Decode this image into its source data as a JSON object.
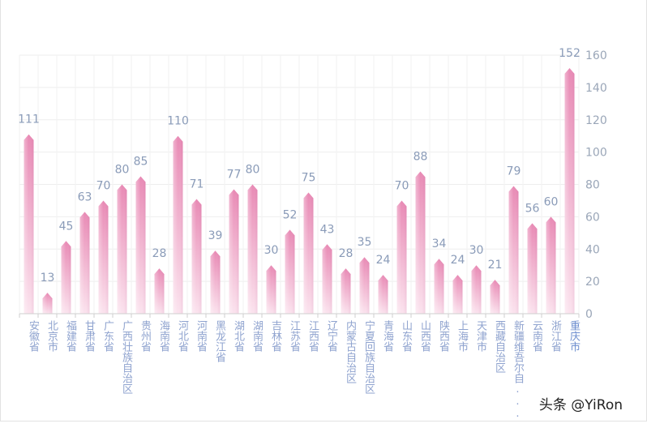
{
  "chart_data": {
    "type": "bar",
    "categories": [
      "安徽省",
      "北京市",
      "福建省",
      "甘肃省",
      "广东省",
      "广西壮族自治区",
      "贵州省",
      "海南省",
      "河北省",
      "河南省",
      "黑龙江省",
      "湖北省",
      "湖南省",
      "吉林省",
      "江苏省",
      "江西省",
      "辽宁省",
      "内蒙古自治区",
      "宁夏回族自治区",
      "青海省",
      "山东省",
      "山西省",
      "陕西省",
      "上海市",
      "天津市",
      "西藏自治区",
      "新疆维吾尔自...",
      "云南省",
      "浙江省",
      "重庆市"
    ],
    "values": [
      111,
      13,
      45,
      63,
      70,
      80,
      85,
      28,
      110,
      71,
      39,
      77,
      80,
      30,
      52,
      75,
      43,
      28,
      35,
      24,
      70,
      88,
      34,
      24,
      30,
      21,
      79,
      56,
      60,
      152
    ],
    "ylim": [
      0,
      160
    ],
    "yticks": [
      0,
      20,
      40,
      60,
      80,
      100,
      120,
      140,
      160
    ],
    "y_axis_position": "right",
    "grid": true,
    "data_labels": true,
    "bar_color_top": "#e889b4",
    "bar_color_bottom": "#fbe3ee",
    "label_color": "#8a9bb8",
    "axis_label_color": "#8fa3cf",
    "highlight_label_color": "#6f8fcf"
  },
  "watermark": "头条 @YiRon"
}
